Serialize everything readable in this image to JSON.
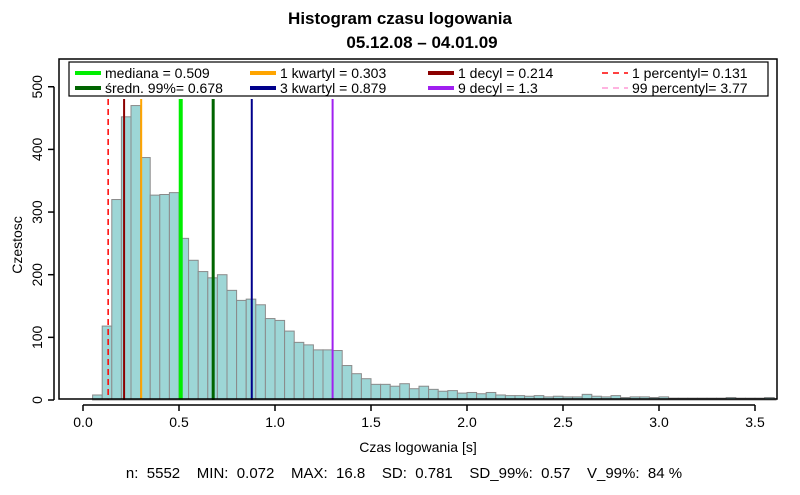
{
  "chart_data": {
    "type": "bar",
    "title": "Histogram czasu logowania",
    "subtitle": "05.12.08 – 04.01.09",
    "xlabel": "Czas logowania [s]",
    "ylabel": "Czestosc",
    "xlim": [
      0.0,
      3.65
    ],
    "ylim": [
      0,
      545
    ],
    "x_ticks": [
      "0.0",
      "0.5",
      "1.0",
      "1.5",
      "2.0",
      "2.5",
      "3.0",
      "3.5"
    ],
    "x_tick_values": [
      0.0,
      0.5,
      1.0,
      1.5,
      2.0,
      2.5,
      3.0,
      3.5
    ],
    "y_ticks": [
      "0",
      "100",
      "200",
      "300",
      "400",
      "500"
    ],
    "y_tick_values": [
      0,
      100,
      200,
      300,
      400,
      500
    ],
    "bin_width": 0.05,
    "bin_start": 0.05,
    "bar_color": "#9dd6d6",
    "bar_edge_color": "#8a8a8a",
    "values": [
      8,
      118,
      320,
      452,
      470,
      387,
      327,
      328,
      331,
      258,
      223,
      205,
      195,
      200,
      175,
      159,
      161,
      152,
      130,
      127,
      110,
      92,
      88,
      80,
      80,
      79,
      55,
      42,
      34,
      25,
      25,
      22,
      26,
      18,
      22,
      17,
      14,
      15,
      11,
      12,
      10,
      12,
      8,
      7,
      7,
      6,
      7,
      5,
      6,
      5,
      5,
      9,
      6,
      5,
      7,
      4,
      5,
      5,
      4,
      5,
      3,
      3,
      3,
      3,
      3,
      3,
      4,
      3,
      3,
      3,
      4,
      2
    ],
    "vlines": [
      {
        "label": "mediana    = 0.509",
        "value": 0.509,
        "color": "#00ee00",
        "width": 4,
        "dash": false
      },
      {
        "label": "średn. 99%= 0.678",
        "value": 0.678,
        "color": "#006400",
        "width": 3,
        "dash": false
      },
      {
        "label": "1 kwartyl = 0.303",
        "value": 0.303,
        "color": "#ffa500",
        "width": 2,
        "dash": false
      },
      {
        "label": "3 kwartyl = 0.879",
        "value": 0.879,
        "color": "#00008b",
        "width": 2,
        "dash": false
      },
      {
        "label": "1 decyl = 0.214",
        "value": 0.214,
        "color": "#8b0000",
        "width": 2,
        "dash": false
      },
      {
        "label": "9 decyl = 1.3",
        "value": 1.3,
        "color": "#a020f0",
        "width": 2,
        "dash": false
      },
      {
        "label": "1 percentyl= 0.131",
        "value": 0.131,
        "color": "#ff0000",
        "width": 1.5,
        "dash": true
      },
      {
        "label": "99 percentyl= 3.77",
        "value": 3.77,
        "color": "#ff9ad6",
        "width": 1.5,
        "dash": true
      }
    ],
    "legend_position": "top",
    "grid": false
  },
  "stats_line": "n:  5552    MIN:  0.072    MAX:  16.8    SD:  0.781    SD_99%:  0.57    V_99%:  84 %"
}
